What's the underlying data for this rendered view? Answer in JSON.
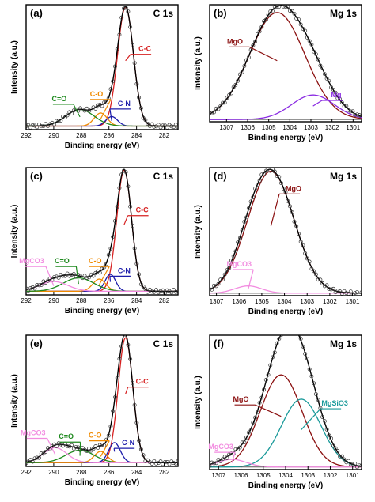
{
  "chart_data": [
    {
      "id": "a",
      "panel_label": "(a)",
      "title": "C 1s",
      "type": "line",
      "xlabel": "Binding energy (eV)",
      "ylabel": "Intensity (a.u.)",
      "xlim": [
        292,
        281
      ],
      "ylim": [
        0,
        1.05
      ],
      "x_ticks": [
        292,
        290,
        288,
        286,
        284,
        282
      ],
      "peaks": [
        {
          "name": "C-C",
          "center": 284.8,
          "height": 1.0,
          "fwhm": 1.35,
          "color": "#d62020"
        },
        {
          "name": "C-N",
          "center": 285.8,
          "height": 0.08,
          "fwhm": 1.0,
          "color": "#1c1caa"
        },
        {
          "name": "C-O",
          "center": 286.6,
          "height": 0.11,
          "fwhm": 1.1,
          "color": "#f08a00"
        },
        {
          "name": "C=O",
          "center": 288.1,
          "height": 0.14,
          "fwhm": 2.4,
          "color": "#1f8a1f"
        }
      ],
      "baseline": 0.03,
      "annotations": [
        {
          "text": "C-C",
          "x": 283.4,
          "y": 0.66,
          "color": "#d62020"
        },
        {
          "text": "C-O",
          "x": 286.9,
          "y": 0.28,
          "color": "#f08a00"
        },
        {
          "text": "C-N",
          "x": 284.9,
          "y": 0.2,
          "color": "#1c1caa"
        },
        {
          "text": "C=O",
          "x": 289.6,
          "y": 0.24,
          "color": "#1f8a1f"
        }
      ]
    },
    {
      "id": "b",
      "panel_label": "(b)",
      "title": "Mg 1s",
      "type": "line",
      "xlabel": "Binding energy (eV)",
      "ylabel": "Intensity (a.u.)",
      "xlim": [
        1307.8,
        1300.6
      ],
      "ylim": [
        0,
        1.05
      ],
      "x_ticks": [
        1307,
        1306,
        1305,
        1304,
        1303,
        1302,
        1301
      ],
      "peaks": [
        {
          "name": "MgO",
          "center": 1304.6,
          "height": 0.96,
          "fwhm": 3.1,
          "color": "#8b1010"
        },
        {
          "name": "Mg",
          "center": 1302.9,
          "height": 0.22,
          "fwhm": 2.4,
          "color": "#8a2be2"
        }
      ],
      "baseline": 0.02,
      "annotations": [
        {
          "text": "MgO",
          "x": 1306.6,
          "y": 0.7,
          "color": "#8b1010"
        },
        {
          "text": "Mg",
          "x": 1301.8,
          "y": 0.22,
          "color": "#8a2be2"
        }
      ]
    },
    {
      "id": "c",
      "panel_label": "(c)",
      "title": "C 1s",
      "type": "line",
      "xlabel": "Binding energy (eV)",
      "ylabel": "Intensity (a.u.)",
      "xlim": [
        292,
        281
      ],
      "ylim": [
        0,
        1.05
      ],
      "x_ticks": [
        292,
        290,
        288,
        286,
        284,
        282
      ],
      "peaks": [
        {
          "name": "C-C",
          "center": 284.9,
          "height": 1.0,
          "fwhm": 1.25,
          "color": "#d62020"
        },
        {
          "name": "C-N",
          "center": 285.9,
          "height": 0.14,
          "fwhm": 0.9,
          "color": "#1c1caa"
        },
        {
          "name": "C-O",
          "center": 286.7,
          "height": 0.1,
          "fwhm": 1.1,
          "color": "#f08a00"
        },
        {
          "name": "C=O",
          "center": 288.2,
          "height": 0.11,
          "fwhm": 2.6,
          "color": "#1f8a1f"
        },
        {
          "name": "MgCO3",
          "center": 290.0,
          "height": 0.08,
          "fwhm": 2.4,
          "color": "#f28ce0"
        }
      ],
      "baseline": 0.03,
      "annotations": [
        {
          "text": "C-C",
          "x": 283.6,
          "y": 0.68,
          "color": "#d62020"
        },
        {
          "text": "C-O",
          "x": 287.0,
          "y": 0.26,
          "color": "#f08a00"
        },
        {
          "text": "C-N",
          "x": 284.9,
          "y": 0.18,
          "color": "#1c1caa"
        },
        {
          "text": "C=O",
          "x": 289.4,
          "y": 0.26,
          "color": "#1f8a1f"
        },
        {
          "text": "MgCO3",
          "x": 291.6,
          "y": 0.26,
          "color": "#f28ce0"
        }
      ]
    },
    {
      "id": "d",
      "panel_label": "(d)",
      "title": "Mg 1s",
      "type": "line",
      "xlabel": "Binding energy (eV)",
      "ylabel": "Intensity (a.u.)",
      "xlim": [
        1307.3,
        1300.6
      ],
      "ylim": [
        0,
        1.05
      ],
      "x_ticks": [
        1307,
        1306,
        1305,
        1304,
        1303,
        1302,
        1301
      ],
      "peaks": [
        {
          "name": "MgO",
          "center": 1304.6,
          "height": 1.0,
          "fwhm": 2.4,
          "color": "#8b1010"
        },
        {
          "name": "MgCO3",
          "center": 1305.6,
          "height": 0.06,
          "fwhm": 1.4,
          "color": "#f28ce0"
        }
      ],
      "baseline": 0.02,
      "annotations": [
        {
          "text": "MgO",
          "x": 1303.6,
          "y": 0.86,
          "color": "#8b1010"
        },
        {
          "text": "MgCO3",
          "x": 1306.0,
          "y": 0.24,
          "color": "#f28ce0"
        }
      ]
    },
    {
      "id": "e",
      "panel_label": "(e)",
      "title": "C 1s",
      "type": "line",
      "xlabel": "Binding energy (eV)",
      "ylabel": "Intensity (a.u.)",
      "xlim": [
        292,
        281
      ],
      "ylim": [
        0,
        1.05
      ],
      "x_ticks": [
        292,
        290,
        288,
        286,
        284,
        282
      ],
      "peaks": [
        {
          "name": "C-C",
          "center": 284.8,
          "height": 1.0,
          "fwhm": 1.25,
          "color": "#d62020"
        },
        {
          "name": "C-N",
          "center": 285.6,
          "height": 0.16,
          "fwhm": 1.0,
          "color": "#1c1caa"
        },
        {
          "name": "C-O",
          "center": 286.6,
          "height": 0.09,
          "fwhm": 1.1,
          "color": "#f08a00"
        },
        {
          "name": "C=O",
          "center": 288.1,
          "height": 0.1,
          "fwhm": 2.4,
          "color": "#1f8a1f"
        },
        {
          "name": "MgCO3",
          "center": 289.9,
          "height": 0.12,
          "fwhm": 2.0,
          "color": "#f28ce0"
        }
      ],
      "baseline": 0.03,
      "annotations": [
        {
          "text": "C-C",
          "x": 283.6,
          "y": 0.66,
          "color": "#d62020"
        },
        {
          "text": "C-O",
          "x": 287.0,
          "y": 0.23,
          "color": "#f08a00"
        },
        {
          "text": "C-N",
          "x": 284.6,
          "y": 0.17,
          "color": "#1c1caa"
        },
        {
          "text": "C=O",
          "x": 289.1,
          "y": 0.22,
          "color": "#1f8a1f"
        },
        {
          "text": "MgCO3",
          "x": 291.5,
          "y": 0.25,
          "color": "#f28ce0"
        }
      ]
    },
    {
      "id": "f",
      "panel_label": "(f)",
      "title": "Mg 1s",
      "type": "line",
      "xlabel": "Binding energy (eV)",
      "ylabel": "Intensity (a.u.)",
      "xlim": [
        1307.4,
        1300.6
      ],
      "ylim": [
        0,
        1.05
      ],
      "x_ticks": [
        1307,
        1306,
        1305,
        1304,
        1303,
        1302,
        1301
      ],
      "peaks": [
        {
          "name": "MgO",
          "center": 1304.2,
          "height": 0.72,
          "fwhm": 2.2,
          "color": "#8b1010"
        },
        {
          "name": "MgSiO3",
          "center": 1303.3,
          "height": 0.53,
          "fwhm": 2.1,
          "color": "#1a9a9a"
        },
        {
          "name": "MgCO3",
          "center": 1306.4,
          "height": 0.06,
          "fwhm": 1.5,
          "color": "#f28ce0"
        }
      ],
      "baseline": 0.02,
      "annotations": [
        {
          "text": "MgO",
          "x": 1306.0,
          "y": 0.53,
          "color": "#8b1010"
        },
        {
          "text": "MgSiO3",
          "x": 1301.8,
          "y": 0.5,
          "color": "#1a9a9a"
        },
        {
          "text": "MgCO3",
          "x": 1306.9,
          "y": 0.16,
          "color": "#f28ce0"
        }
      ]
    }
  ]
}
